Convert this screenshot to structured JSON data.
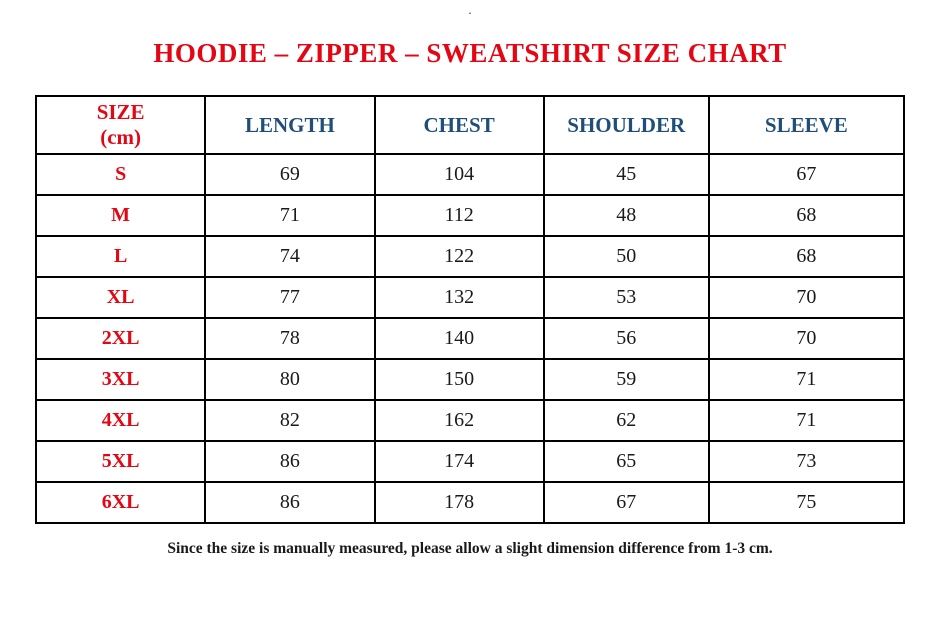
{
  "page": {
    "top_dot": ".",
    "title": "HOODIE – ZIPPER – SWEATSHIRT SIZE CHART",
    "footnote": "Since the size is manually measured, please allow a slight dimension difference from 1-3 cm."
  },
  "colors": {
    "title_red": "#e40613",
    "header_blue": "#1f4e79",
    "size_label_red": "#e40613",
    "border_black": "#000000",
    "value_black": "#1a1a1a"
  },
  "chart_data": {
    "type": "table",
    "title": "HOODIE – ZIPPER – SWEATSHIRT SIZE CHART",
    "unit": "cm",
    "columns": [
      "SIZE\n(cm)",
      "LENGTH",
      "CHEST",
      "SHOULDER",
      "SLEEVE"
    ],
    "rows": [
      [
        "S",
        69,
        104,
        45,
        67
      ],
      [
        "M",
        71,
        112,
        48,
        68
      ],
      [
        "L",
        74,
        122,
        50,
        68
      ],
      [
        "XL",
        77,
        132,
        53,
        70
      ],
      [
        "2XL",
        78,
        140,
        56,
        70
      ],
      [
        "3XL",
        80,
        150,
        59,
        71
      ],
      [
        "4XL",
        82,
        162,
        62,
        71
      ],
      [
        "5XL",
        86,
        174,
        65,
        73
      ],
      [
        "6XL",
        86,
        178,
        67,
        75
      ]
    ]
  },
  "table": {
    "headers": {
      "size": "SIZE\n(cm)",
      "length": "LENGTH",
      "chest": "CHEST",
      "shoulder": "SHOULDER",
      "sleeve": "SLEEVE"
    },
    "rows": [
      {
        "size": "S",
        "length": "69",
        "chest": "104",
        "shoulder": "45",
        "sleeve": "67"
      },
      {
        "size": "M",
        "length": "71",
        "chest": "112",
        "shoulder": "48",
        "sleeve": "68"
      },
      {
        "size": "L",
        "length": "74",
        "chest": "122",
        "shoulder": "50",
        "sleeve": "68"
      },
      {
        "size": "XL",
        "length": "77",
        "chest": "132",
        "shoulder": "53",
        "sleeve": "70"
      },
      {
        "size": "2XL",
        "length": "78",
        "chest": "140",
        "shoulder": "56",
        "sleeve": "70"
      },
      {
        "size": "3XL",
        "length": "80",
        "chest": "150",
        "shoulder": "59",
        "sleeve": "71"
      },
      {
        "size": "4XL",
        "length": "82",
        "chest": "162",
        "shoulder": "62",
        "sleeve": "71"
      },
      {
        "size": "5XL",
        "length": "86",
        "chest": "174",
        "shoulder": "65",
        "sleeve": "73"
      },
      {
        "size": "6XL",
        "length": "86",
        "chest": "178",
        "shoulder": "67",
        "sleeve": "75"
      }
    ]
  }
}
